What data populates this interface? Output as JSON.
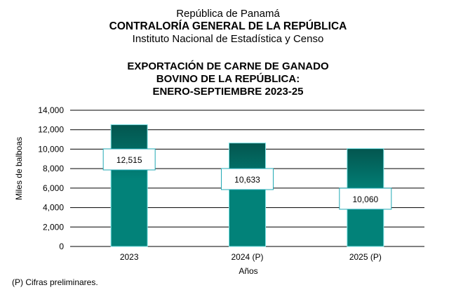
{
  "header": {
    "line1": "República de Panamá",
    "line2": "CONTRALORÍA GENERAL DE LA REPÚBLICA",
    "line3": "Instituto  Nacional de Estadística  y  Censo"
  },
  "chart_data": {
    "type": "bar",
    "title": [
      "EXPORTACIÓN DE CARNE DE GANADO",
      "BOVINO DE LA REPÚBLICA:",
      "ENERO-SEPTIEMBRE 2023-25"
    ],
    "categories": [
      "2023",
      "2024 (P)",
      "2025 (P)"
    ],
    "values": [
      12515,
      10633,
      10060
    ],
    "data_labels": [
      "12,515",
      "10,633",
      "10,060"
    ],
    "xlabel": "Años",
    "ylabel": "Miles de balboas",
    "ylim": [
      0,
      14000
    ],
    "yticks": [
      0,
      2000,
      4000,
      6000,
      8000,
      10000,
      12000,
      14000
    ],
    "ytick_labels": [
      "0",
      "2,000",
      "4,000",
      "6,000",
      "8,000",
      "10,000",
      "12,000",
      "14,000"
    ],
    "grid": true,
    "legend": "none",
    "colors": {
      "bar_top": "#03564f",
      "bar_bottom": "#028279",
      "bar_border": "#7fe3e6",
      "label_border": "#20a9b4"
    }
  },
  "footnote": "(P) Cifras  preliminares."
}
